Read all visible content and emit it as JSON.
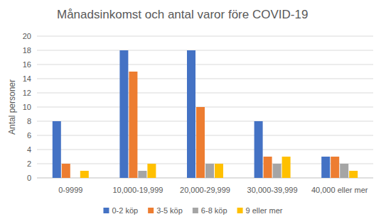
{
  "chart_data": {
    "type": "bar",
    "title": "Månadsinkomst och antal varor före COVID-19",
    "y_label": "Antal personer",
    "categories": [
      "0-9999",
      "10,000-19,999",
      "20,000-29,999",
      "30,000-39,999",
      "40,000 eller mer"
    ],
    "series": [
      {
        "name": "0-2 köp",
        "color": "#4472c4",
        "values": [
          8,
          18,
          18,
          8,
          3
        ]
      },
      {
        "name": "3-5 köp",
        "color": "#ed7d31",
        "values": [
          2,
          15,
          10,
          3,
          3
        ]
      },
      {
        "name": "6-8 köp",
        "color": "#a5a5a5",
        "values": [
          0,
          1,
          2,
          2,
          2
        ]
      },
      {
        "name": "9 eller mer",
        "color": "#ffc000",
        "values": [
          1,
          2,
          2,
          3,
          1
        ]
      }
    ],
    "ylim": [
      0,
      20
    ],
    "yticks": [
      0,
      2,
      4,
      6,
      8,
      10,
      12,
      14,
      16,
      18,
      20
    ],
    "grid": true,
    "legend": "bottom"
  }
}
